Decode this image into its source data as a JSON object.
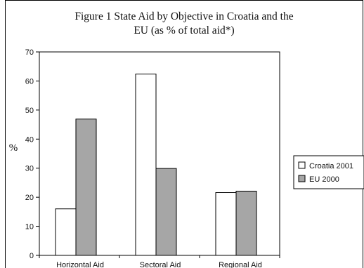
{
  "chart_data": {
    "type": "bar",
    "title_line1": "Figure 1 State Aid by Objective in Croatia and the",
    "title_line2": "EU (as % of total aid*)",
    "xlabel": "",
    "ylabel": "%",
    "ylim": [
      0,
      70
    ],
    "yticks": [
      0,
      10,
      20,
      30,
      40,
      50,
      60,
      70
    ],
    "categories": [
      "Horizontal Aid",
      "Sectoral Aid",
      "Regional Aid"
    ],
    "series": [
      {
        "name": "Croatia 2001",
        "color": "#ffffff",
        "values": [
          16,
          62.4,
          21.6
        ]
      },
      {
        "name": "EU 2000",
        "color": "#a6a6a6",
        "values": [
          46.9,
          29.9,
          22.1
        ]
      }
    ],
    "grid": false,
    "legend": "right"
  }
}
